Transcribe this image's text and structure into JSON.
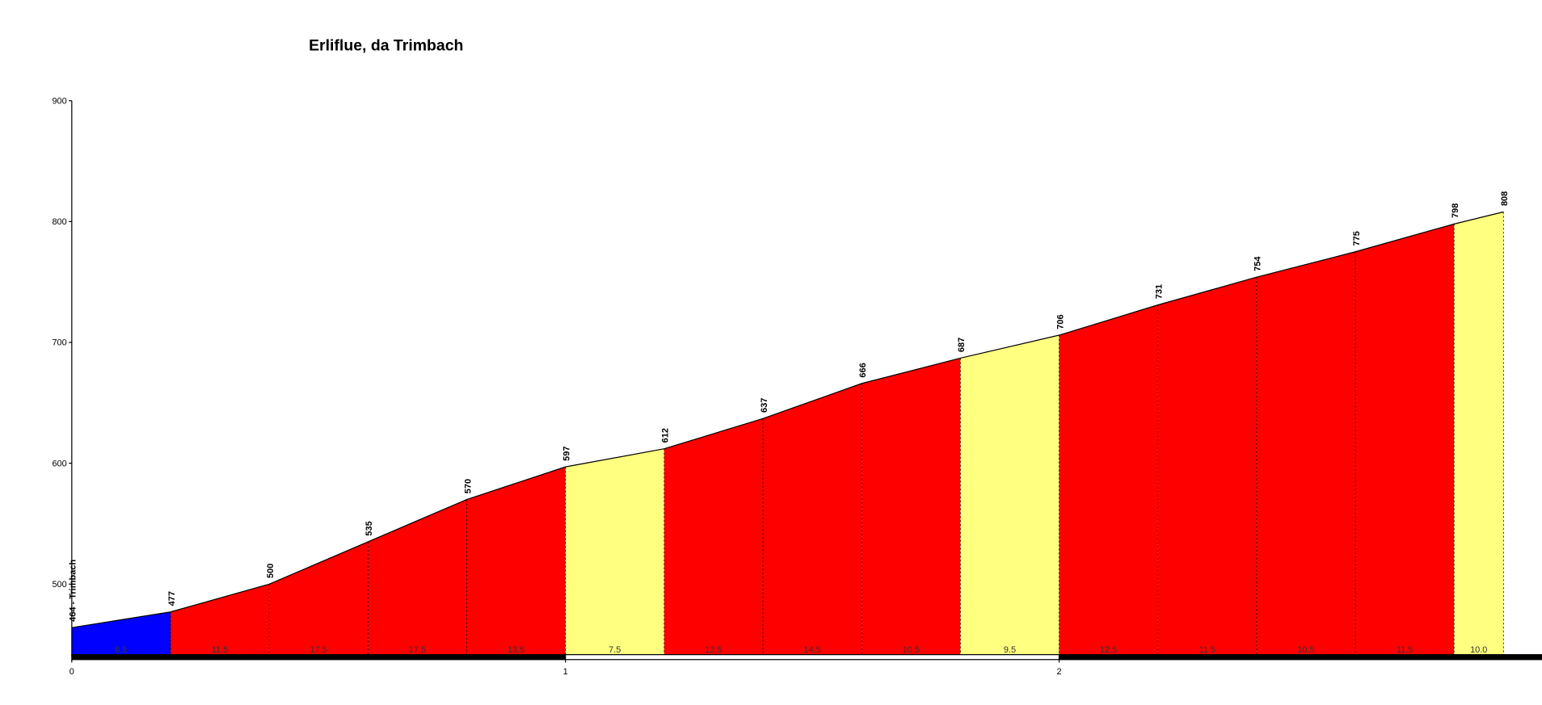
{
  "chart_data": {
    "type": "elevation-profile",
    "title": "Erliflue, da Trimbach",
    "x": [
      0,
      0.2,
      0.4,
      0.6,
      0.8,
      1.0,
      1.2,
      1.4,
      1.6,
      1.8,
      2.0,
      2.2,
      2.4,
      2.6,
      2.8,
      2.9
    ],
    "values": [
      464,
      477,
      500,
      535,
      570,
      597,
      612,
      637,
      666,
      687,
      706,
      731,
      754,
      775,
      798,
      808
    ],
    "value_labels": [
      "464 - Trimbach",
      "477",
      "500",
      "535",
      "570",
      "597",
      "612",
      "637",
      "666",
      "687",
      "706",
      "731",
      "754",
      "775",
      "798",
      "808"
    ],
    "segments": {
      "values": [
        6.5,
        11.5,
        17.5,
        17.5,
        13.5,
        7.5,
        12.5,
        14.5,
        10.5,
        9.5,
        12.5,
        11.5,
        10.5,
        11.5,
        10.0
      ],
      "value_labels": [
        "6.5",
        "11.5",
        "17.5",
        "17.5",
        "13.5",
        "7.5",
        "12.5",
        "14.5",
        "10.5",
        "9.5",
        "12.5",
        "11.5",
        "10.5",
        "11.5",
        "10.0"
      ],
      "colors": [
        "#0000ff",
        "#ff0000",
        "#ff0000",
        "#ff0000",
        "#ff0000",
        "#ffff80",
        "#ff0000",
        "#ff0000",
        "#ff0000",
        "#ffff80",
        "#ff0000",
        "#ff0000",
        "#ff0000",
        "#ff0000",
        "#ffff80"
      ]
    },
    "xlim": [
      0,
      2.98
    ],
    "ylim": [
      440,
      900
    ],
    "xticks": [
      0,
      1,
      2
    ],
    "yticks": [
      500,
      600,
      700,
      800,
      900
    ]
  }
}
